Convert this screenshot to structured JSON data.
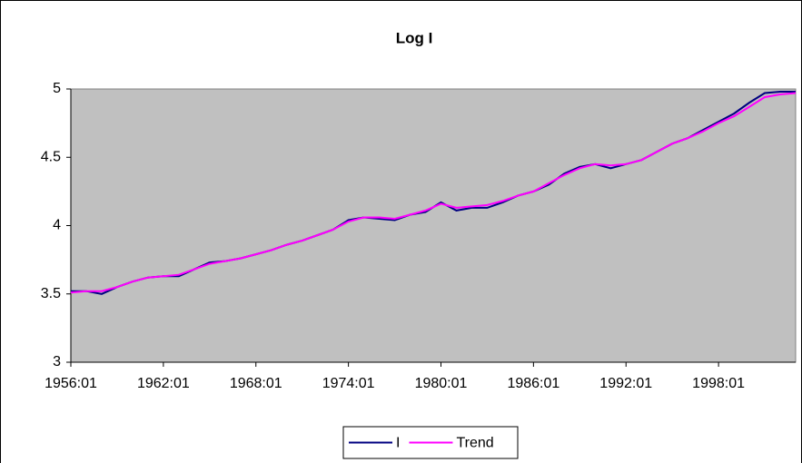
{
  "chart_data": {
    "type": "line",
    "title": "Log I",
    "categories": [
      "1956:01",
      null,
      null,
      null,
      null,
      null,
      "1962:01",
      null,
      null,
      null,
      null,
      null,
      "1968:01",
      null,
      null,
      null,
      null,
      null,
      "1974:01",
      null,
      null,
      null,
      null,
      null,
      "1980:01",
      null,
      null,
      null,
      null,
      null,
      "1986:01",
      null,
      null,
      null,
      null,
      null,
      "1992:01",
      null,
      null,
      null,
      null,
      null,
      "1998:01",
      null,
      null,
      null,
      null,
      null
    ],
    "series": [
      {
        "name": "I",
        "color": "#000080",
        "values": [
          3.52,
          3.52,
          3.5,
          3.55,
          3.59,
          3.62,
          3.63,
          3.63,
          3.68,
          3.73,
          3.74,
          3.76,
          3.79,
          3.82,
          3.86,
          3.89,
          3.93,
          3.97,
          4.04,
          4.06,
          4.05,
          4.04,
          4.08,
          4.1,
          4.17,
          4.11,
          4.13,
          4.13,
          4.17,
          4.22,
          4.25,
          4.3,
          4.38,
          4.43,
          4.45,
          4.42,
          4.45,
          4.48,
          4.54,
          4.6,
          4.64,
          4.7,
          4.76,
          4.82,
          4.9,
          4.97,
          4.98,
          4.98
        ]
      },
      {
        "name": "Trend",
        "color": "#ff00ff",
        "values": [
          3.51,
          3.52,
          3.52,
          3.55,
          3.59,
          3.62,
          3.63,
          3.64,
          3.68,
          3.72,
          3.74,
          3.76,
          3.79,
          3.82,
          3.86,
          3.89,
          3.93,
          3.97,
          4.03,
          4.06,
          4.06,
          4.05,
          4.08,
          4.11,
          4.16,
          4.13,
          4.14,
          4.15,
          4.18,
          4.22,
          4.25,
          4.31,
          4.37,
          4.42,
          4.45,
          4.44,
          4.45,
          4.48,
          4.54,
          4.6,
          4.64,
          4.69,
          4.75,
          4.8,
          4.87,
          4.94,
          4.96,
          4.97
        ]
      }
    ],
    "ylim": [
      3,
      5
    ],
    "yticks": [
      3,
      3.5,
      4,
      4.5,
      5
    ],
    "grid": false,
    "legend": "bottom",
    "plot_background": "#c0c0c0"
  }
}
